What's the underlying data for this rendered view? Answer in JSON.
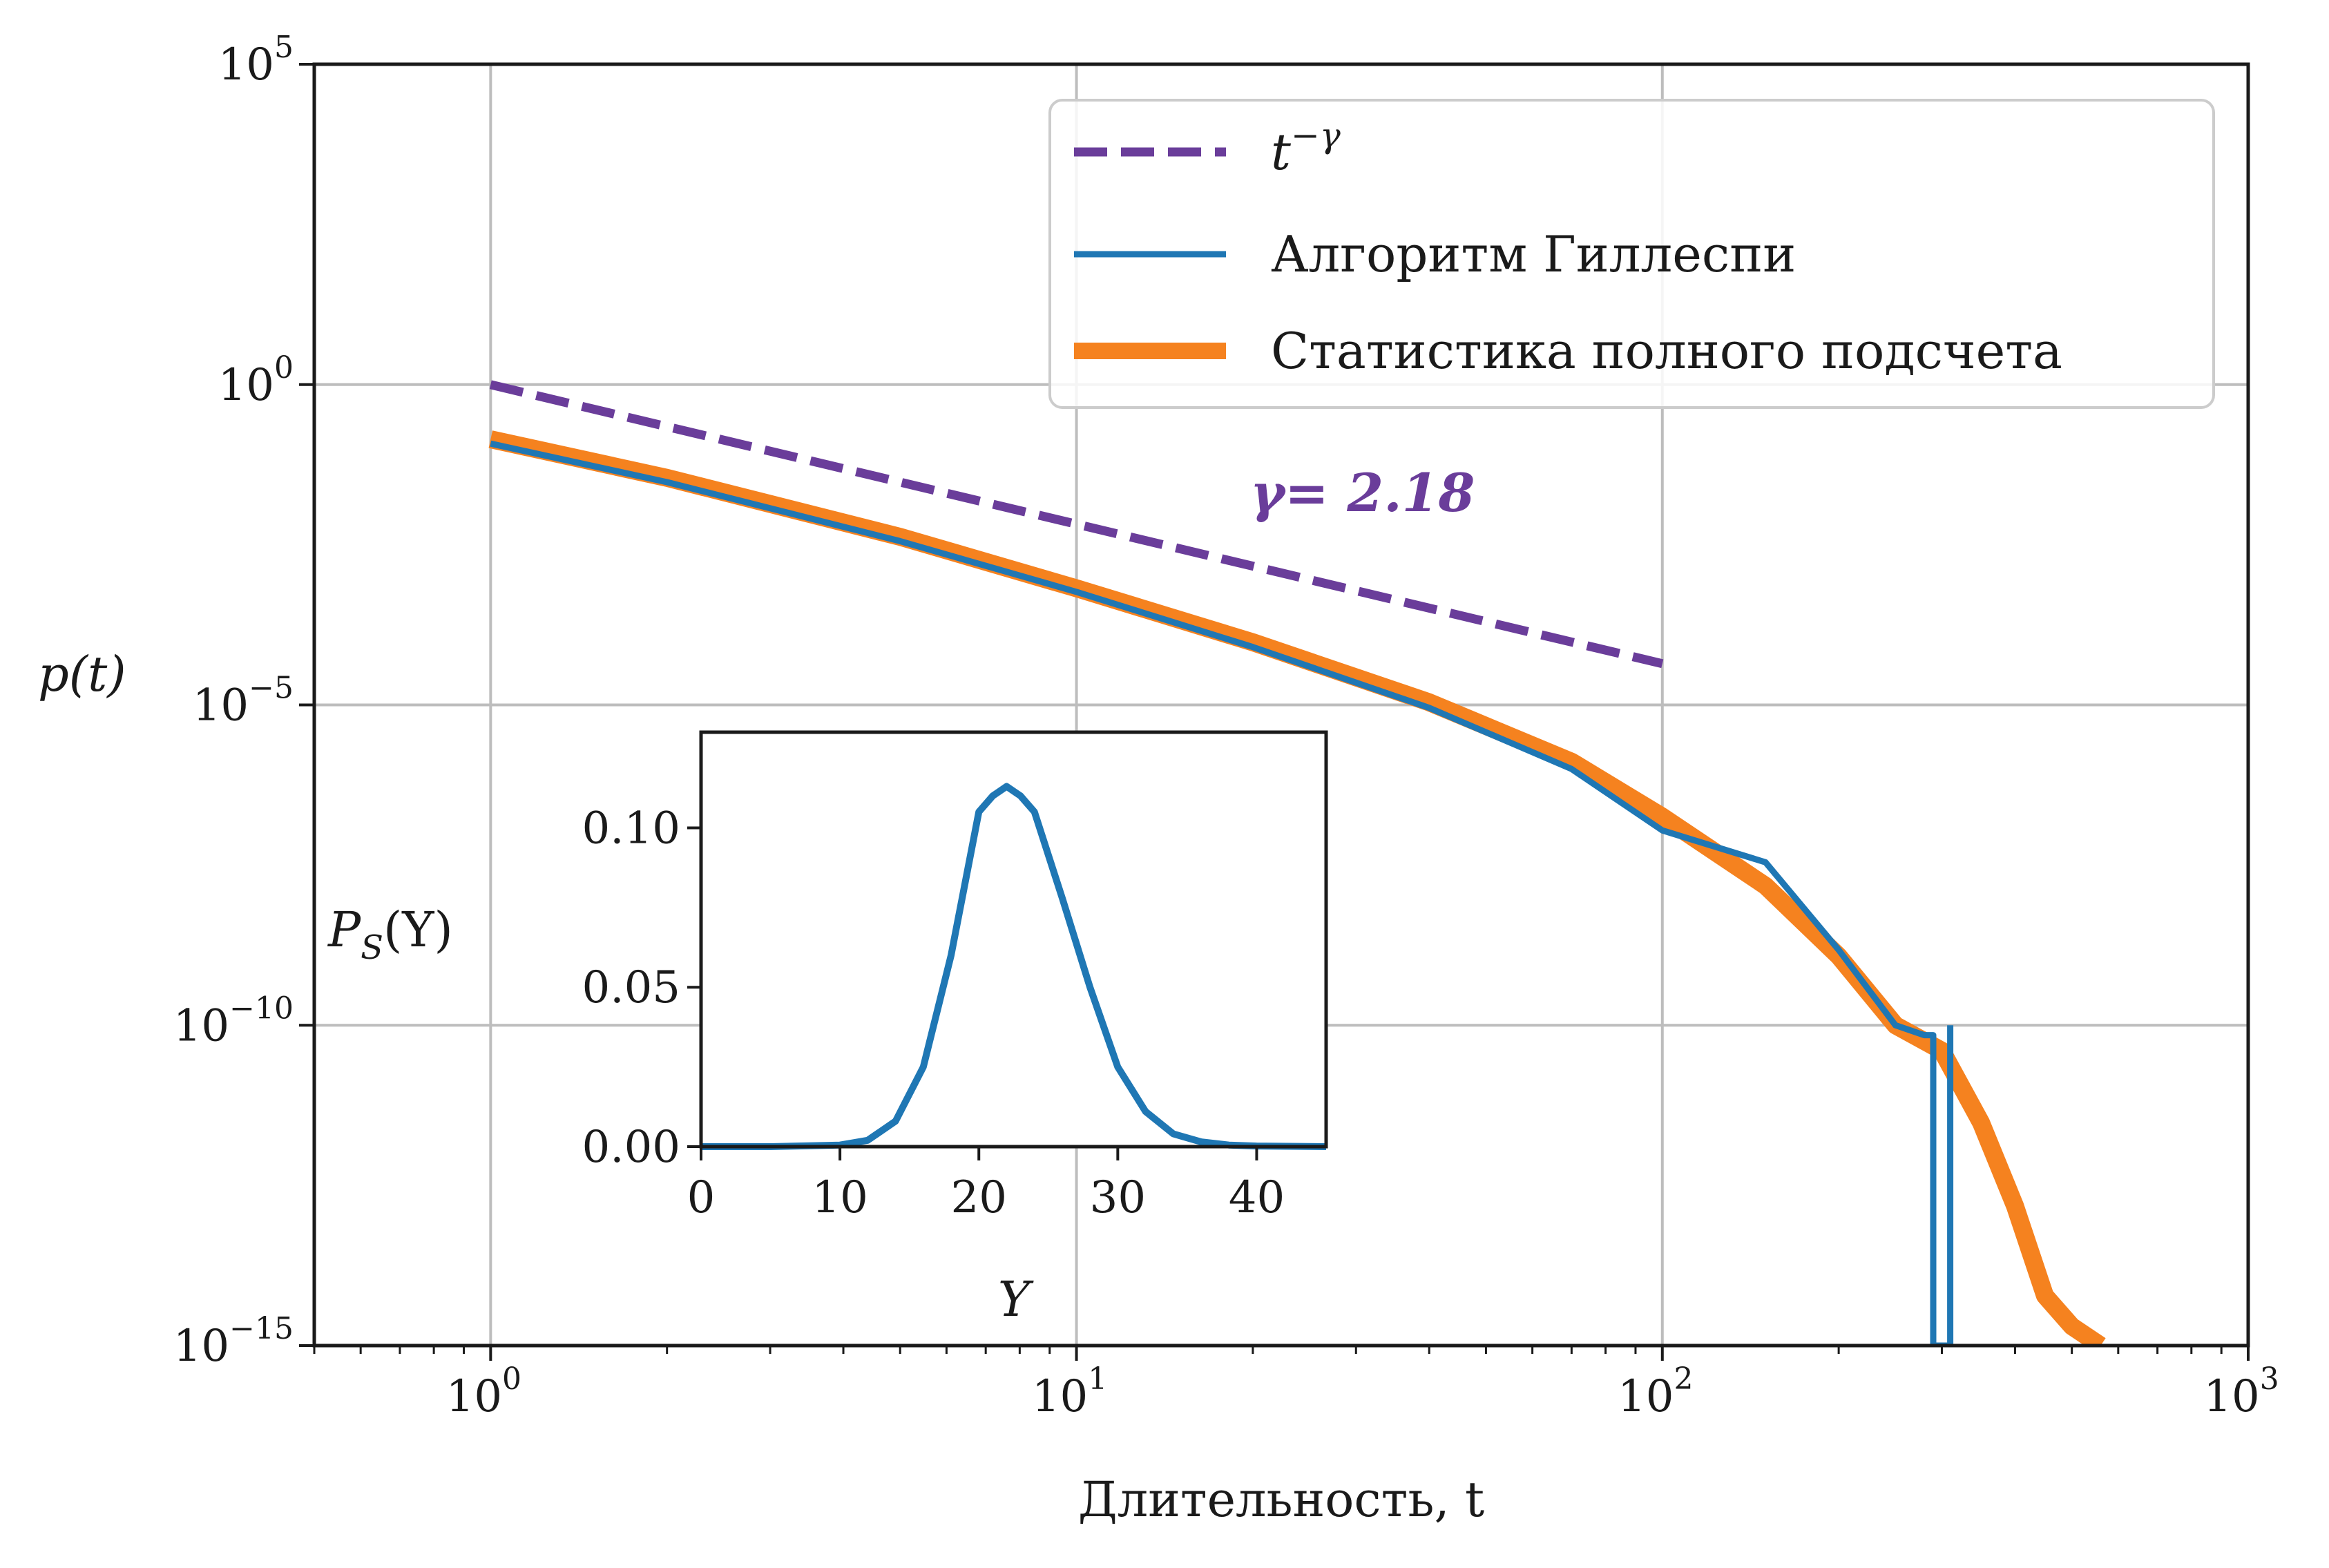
{
  "chart_data": [
    {
      "type": "line",
      "xscale": "log",
      "yscale": "log",
      "xlabel": "Длительность, t",
      "ylabel": "p(t)",
      "xlim": [
        0.5,
        1000
      ],
      "ylim": [
        1e-15,
        100000
      ],
      "x_ticks": [
        {
          "value": 1,
          "base": "10",
          "exp": "0"
        },
        {
          "value": 10,
          "base": "10",
          "exp": "1"
        },
        {
          "value": 100,
          "base": "10",
          "exp": "2"
        },
        {
          "value": 1000,
          "base": "10",
          "exp": "3"
        }
      ],
      "y_ticks": [
        {
          "value": 1e-15,
          "base": "10",
          "exp": "−15"
        },
        {
          "value": 1e-10,
          "base": "10",
          "exp": "−10"
        },
        {
          "value": 1e-05,
          "base": "10",
          "exp": "−5"
        },
        {
          "value": 1,
          "base": "10",
          "exp": "0"
        },
        {
          "value": 100000,
          "base": "10",
          "exp": "5"
        }
      ],
      "grid": true,
      "legend_position": "top-right",
      "annotation": "γ= 2.18",
      "series": [
        {
          "name": "t^−γ",
          "legend_base": "t",
          "legend_exp": "−γ",
          "color": "#6a3d9a",
          "style": "dashed",
          "x": [
            1,
            100
          ],
          "y": [
            1,
            4.4e-05
          ]
        },
        {
          "name": "Алгоритм Гиллеспи",
          "color": "#1f77b4",
          "style": "solid",
          "x": [
            1,
            2,
            5,
            10,
            20,
            40,
            70,
            100,
            150,
            200,
            250,
            280,
            290,
            290,
            310,
            310
          ],
          "y": [
            0.12,
            0.03,
            0.0036,
            0.00058,
            8e-05,
            9e-06,
            1e-06,
            1.1e-07,
            3.5e-08,
            1.5e-09,
            1e-10,
            7e-11,
            7e-11,
            1e-15,
            1e-15,
            1e-10
          ]
        },
        {
          "name": "Статистика полного подсчета",
          "color": "#f5821f",
          "style": "solid-thick",
          "x": [
            1,
            2,
            5,
            10,
            20,
            40,
            70,
            100,
            150,
            200,
            250,
            300,
            350,
            400,
            450,
            500,
            560
          ],
          "y": [
            0.14,
            0.035,
            0.0042,
            0.00066,
            9.5e-05,
            1.1e-05,
            1.3e-06,
            1.8e-07,
            1.5e-08,
            1.2e-09,
            1e-10,
            4e-11,
            3e-12,
            1.5e-13,
            6e-15,
            2e-15,
            1e-15
          ]
        }
      ]
    },
    {
      "type": "line",
      "inset": true,
      "xlabel": "Y",
      "ylabel": "P_S(Y)",
      "ylabel_base": "P",
      "ylabel_sub": "S",
      "ylabel_arg": "(Y)",
      "xlim": [
        0,
        45
      ],
      "ylim": [
        0,
        0.13
      ],
      "x_ticks": [
        "0",
        "10",
        "20",
        "30",
        "40"
      ],
      "x_tick_values": [
        0,
        10,
        20,
        30,
        40
      ],
      "y_ticks": [
        "0.00",
        "0.05",
        "0.10"
      ],
      "y_tick_values": [
        0,
        0.05,
        0.1
      ],
      "series": [
        {
          "color": "#1f77b4",
          "x": [
            0,
            5,
            10,
            12,
            14,
            16,
            18,
            20,
            21,
            22,
            23,
            24,
            26,
            28,
            30,
            32,
            34,
            36,
            38,
            40,
            45
          ],
          "y": [
            0,
            0,
            0.0005,
            0.002,
            0.008,
            0.025,
            0.06,
            0.105,
            0.11,
            0.113,
            0.11,
            0.105,
            0.078,
            0.05,
            0.025,
            0.011,
            0.004,
            0.0015,
            0.0005,
            0.0002,
            0
          ]
        }
      ]
    }
  ]
}
